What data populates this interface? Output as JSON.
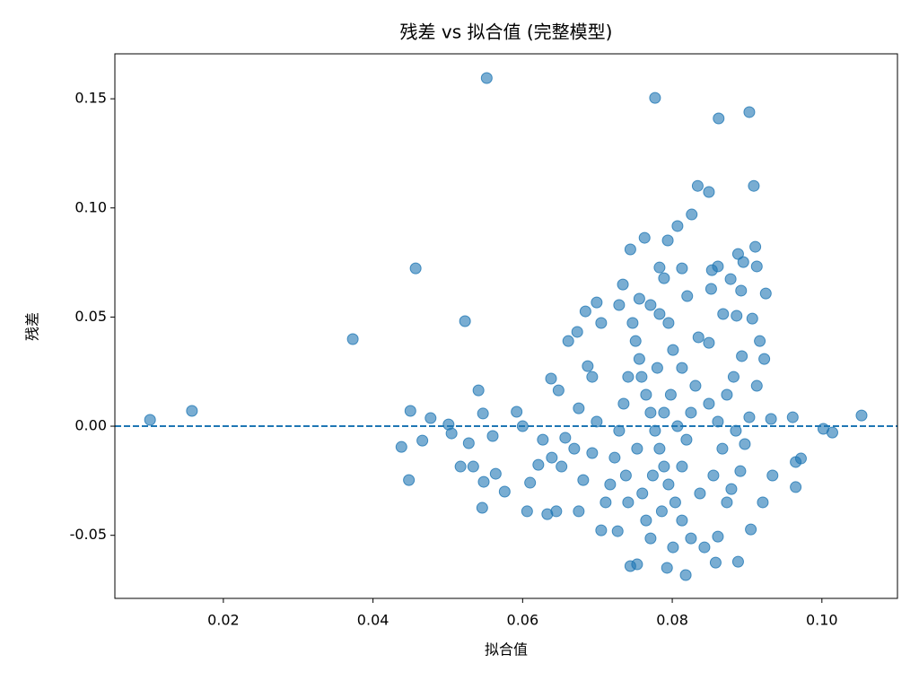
{
  "chart_data": {
    "type": "scatter",
    "title": "残差 vs 拟合值 (完整模型)",
    "x_label": "拟合值",
    "y_label": "残差",
    "xlim": [
      0.0055,
      0.1101
    ],
    "ylim": [
      -0.0789,
      0.1706
    ],
    "xticks": [
      0.02,
      0.04,
      0.06,
      0.08,
      {
        "value": 0.1,
        "label": "0.10"
      }
    ],
    "yticks": [
      -0.05,
      {
        "value": 0,
        "label": "0.00"
      },
      0.05,
      {
        "value": 0.1,
        "label": "0.10"
      },
      0.15
    ],
    "hline": 0,
    "hline_color": "#1f77b4",
    "grid": false,
    "series": [
      {
        "color": "#1f77b4",
        "x": [
          0.0102,
          0.0158,
          0.0373,
          0.0457,
          0.0523,
          0.0552,
          0.0777,
          0.0862,
          0.0903,
          0.0834,
          0.0849,
          0.0909,
          0.0826,
          0.0807,
          0.0763,
          0.0794,
          0.0744,
          0.0438,
          0.0448,
          0.045,
          0.0466,
          0.0477,
          0.0501,
          0.0505,
          0.0517,
          0.0528,
          0.0534,
          0.0541,
          0.0546,
          0.0548,
          0.0547,
          0.056,
          0.0564,
          0.0576,
          0.0592,
          0.06,
          0.0606,
          0.061,
          0.0621,
          0.0633,
          0.0638,
          0.0648,
          0.0661,
          0.0673,
          0.0699,
          0.0734,
          0.0783,
          0.0813,
          0.0853,
          0.0861,
          0.0888,
          0.0895,
          0.0911,
          0.0878,
          0.0913,
          0.0925,
          0.0892,
          0.0852,
          0.0907,
          0.0886,
          0.0961,
          0.0965,
          0.0972,
          0.0965,
          0.1002,
          0.1014,
          0.1053,
          0.0932,
          0.0934,
          0.0921,
          0.0905,
          0.0888,
          0.0858,
          0.0818,
          0.0793,
          0.0744,
          0.0753,
          0.0727,
          0.0705,
          0.0675,
          0.0645,
          0.0652,
          0.0657,
          0.0675,
          0.0687,
          0.0684,
          0.0705,
          0.0729,
          0.0756,
          0.0789,
          0.082,
          0.0835,
          0.0849,
          0.0868,
          0.0882,
          0.0893,
          0.0917,
          0.0923,
          0.0913,
          0.0903,
          0.0897,
          0.0891,
          0.0873,
          0.0861,
          0.0843,
          0.0825,
          0.0813,
          0.0804,
          0.0795,
          0.0789,
          0.0783,
          0.0777,
          0.0771,
          0.0765,
          0.0759,
          0.0756,
          0.0751,
          0.0747,
          0.0741,
          0.0735,
          0.0729,
          0.0723,
          0.0717,
          0.0711,
          0.0741,
          0.0765,
          0.0771,
          0.0801,
          0.0813,
          0.0819,
          0.0825,
          0.0831,
          0.0813,
          0.0801,
          0.0795,
          0.0783,
          0.0771,
          0.0849,
          0.0861,
          0.0867,
          0.0855,
          0.0837,
          0.0879,
          0.0885,
          0.0873,
          0.0693,
          0.0699,
          0.0693,
          0.0681,
          0.0669,
          0.0627,
          0.0639,
          0.0789,
          0.0798,
          0.078,
          0.0774,
          0.0807,
          0.0786,
          0.076,
          0.0738,
          0.0753
        ],
        "values": [
          0.0029,
          0.007,
          0.0399,
          0.0723,
          0.0481,
          0.1595,
          0.1504,
          0.141,
          0.1439,
          0.1101,
          0.1073,
          0.1101,
          0.097,
          0.0917,
          0.0863,
          0.0851,
          0.081,
          -0.0095,
          -0.0247,
          0.007,
          -0.0066,
          0.0037,
          0.0008,
          -0.0033,
          -0.0185,
          -0.0078,
          -0.0185,
          0.0164,
          -0.0374,
          -0.0255,
          0.0058,
          -0.0045,
          -0.0218,
          -0.03,
          0.0066,
          0.0,
          -0.039,
          -0.0259,
          -0.0177,
          -0.0403,
          0.0218,
          0.0164,
          0.039,
          0.0432,
          0.0567,
          0.0649,
          0.0727,
          0.0723,
          0.0715,
          0.0732,
          0.0789,
          0.0752,
          0.0822,
          0.0674,
          0.0732,
          0.0608,
          0.0621,
          0.0629,
          0.0493,
          0.0506,
          0.0041,
          -0.0164,
          -0.0148,
          -0.0279,
          -0.0012,
          -0.0029,
          0.0049,
          0.0033,
          -0.0226,
          -0.0349,
          -0.0473,
          -0.0621,
          -0.0625,
          -0.0682,
          -0.0649,
          -0.0641,
          -0.0633,
          -0.0481,
          -0.0477,
          -0.039,
          -0.039,
          -0.0185,
          -0.0053,
          0.0082,
          0.0275,
          0.0526,
          0.0473,
          0.0555,
          0.0584,
          0.0678,
          0.0596,
          0.0407,
          0.0382,
          0.0514,
          0.0226,
          0.0321,
          0.039,
          0.0308,
          0.0185,
          0.0041,
          -0.0082,
          -0.0206,
          -0.0349,
          -0.0506,
          -0.0555,
          -0.0514,
          -0.0432,
          -0.0349,
          -0.0267,
          -0.0185,
          -0.0103,
          -0.0021,
          0.0062,
          0.0144,
          0.0226,
          0.0308,
          0.039,
          0.0473,
          0.0226,
          0.0103,
          -0.0021,
          -0.0144,
          -0.0267,
          -0.0349,
          -0.0349,
          -0.0432,
          -0.0514,
          -0.0555,
          -0.0185,
          -0.0062,
          0.0062,
          0.0185,
          0.0267,
          0.0349,
          0.0473,
          0.0514,
          0.0555,
          0.0103,
          0.0021,
          -0.0103,
          -0.0226,
          -0.0308,
          -0.0288,
          -0.0021,
          0.0144,
          0.0226,
          0.0021,
          -0.0123,
          -0.0247,
          -0.0103,
          -0.0062,
          -0.0144,
          0.0062,
          0.0144,
          0.0267,
          -0.0226,
          0.0,
          -0.039,
          -0.0308,
          -0.0226,
          -0.0103
        ]
      }
    ]
  }
}
